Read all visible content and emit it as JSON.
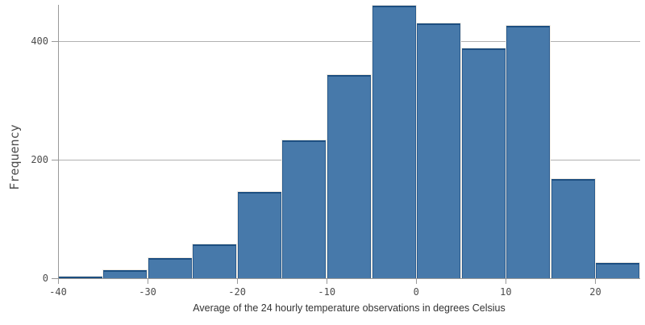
{
  "chart_data": {
    "type": "bar",
    "subtype": "histogram",
    "title": "",
    "xlabel": "Average of the 24 hourly temperature observations in degrees Celsius",
    "ylabel": "Frequency",
    "bin_width": 5,
    "bins": [
      {
        "start": -40,
        "end": -35,
        "frequency": 3
      },
      {
        "start": -35,
        "end": -30,
        "frequency": 13
      },
      {
        "start": -30,
        "end": -25,
        "frequency": 34
      },
      {
        "start": -25,
        "end": -20,
        "frequency": 57
      },
      {
        "start": -20,
        "end": -15,
        "frequency": 146
      },
      {
        "start": -15,
        "end": -10,
        "frequency": 232
      },
      {
        "start": -10,
        "end": -5,
        "frequency": 343
      },
      {
        "start": -5,
        "end": 0,
        "frequency": 460
      },
      {
        "start": 0,
        "end": 5,
        "frequency": 430
      },
      {
        "start": 5,
        "end": 10,
        "frequency": 387
      },
      {
        "start": 10,
        "end": 15,
        "frequency": 425
      },
      {
        "start": 15,
        "end": 20,
        "frequency": 167
      },
      {
        "start": 20,
        "end": 25,
        "frequency": 26
      }
    ],
    "x_ticks": [
      -40,
      -30,
      -20,
      -10,
      0,
      10,
      20
    ],
    "y_ticks": [
      0,
      200,
      400
    ],
    "xlim": [
      -40,
      25
    ],
    "ylim": [
      0,
      461
    ],
    "grid": "horizontal-y",
    "legend": "none",
    "colors": {
      "bar_fill": "#4779aa",
      "bar_border": "#2a5c8f",
      "bar_border_top": "#1d4f81",
      "bar_outline_gap": "#f2ede6",
      "axis_line": "#999999",
      "gridline": "#b1b1b1",
      "tick_label": "#4c4c4c",
      "axis_title": "#333333",
      "background": "#ffffff"
    }
  }
}
